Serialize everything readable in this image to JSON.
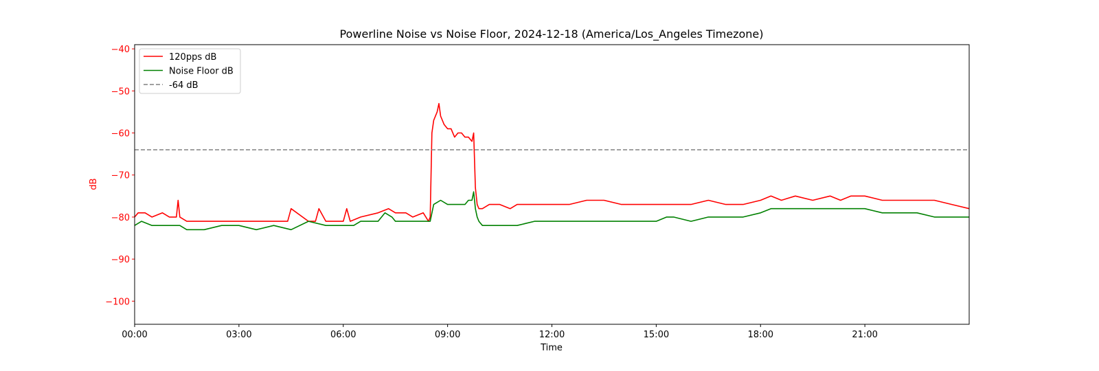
{
  "chart_data": {
    "type": "line",
    "title": "Powerline Noise vs Noise Floor, 2024-12-18 (America/Los_Angeles Timezone)",
    "xlabel": "Time",
    "ylabel": "dB",
    "x_unit": "hours",
    "xlim": [
      0,
      24
    ],
    "ylim": [
      -105.5,
      -39
    ],
    "x_ticks": [
      {
        "value": 0,
        "label": "00:00"
      },
      {
        "value": 3,
        "label": "03:00"
      },
      {
        "value": 6,
        "label": "06:00"
      },
      {
        "value": 9,
        "label": "09:00"
      },
      {
        "value": 12,
        "label": "12:00"
      },
      {
        "value": 15,
        "label": "15:00"
      },
      {
        "value": 18,
        "label": "18:00"
      },
      {
        "value": 21,
        "label": "21:00"
      }
    ],
    "y_ticks": [
      -40,
      -50,
      -60,
      -70,
      -80,
      -90,
      -100
    ],
    "grid": false,
    "legend_position": "top-left",
    "colors": {
      "ylabel": "#ff0000",
      "yticks": "#ff0000"
    },
    "series": [
      {
        "name": "120pps dB",
        "color": "#ff0000",
        "style": "solid",
        "x": [
          0,
          0.1,
          0.3,
          0.5,
          0.8,
          1.0,
          1.2,
          1.25,
          1.3,
          1.5,
          2.0,
          3.0,
          4.0,
          4.4,
          4.5,
          5.0,
          5.2,
          5.3,
          5.5,
          6.0,
          6.1,
          6.2,
          6.5,
          7.0,
          7.3,
          7.5,
          7.8,
          8.0,
          8.3,
          8.45,
          8.5,
          8.55,
          8.6,
          8.7,
          8.75,
          8.8,
          8.9,
          9.0,
          9.1,
          9.2,
          9.3,
          9.4,
          9.5,
          9.6,
          9.7,
          9.75,
          9.8,
          9.85,
          9.9,
          10.0,
          10.2,
          10.5,
          10.8,
          11.0,
          11.5,
          12.0,
          12.5,
          13.0,
          13.5,
          14.0,
          14.5,
          15.0,
          15.5,
          16.0,
          16.5,
          17.0,
          17.5,
          18.0,
          18.3,
          18.6,
          19.0,
          19.5,
          20.0,
          20.3,
          20.6,
          21.0,
          21.5,
          22.0,
          22.5,
          23.0,
          23.5,
          24.0
        ],
        "y": [
          -80,
          -79,
          -79,
          -80,
          -79,
          -80,
          -80,
          -76,
          -80,
          -81,
          -81,
          -81,
          -81,
          -81,
          -78,
          -81,
          -81,
          -78,
          -81,
          -81,
          -78,
          -81,
          -80,
          -79,
          -78,
          -79,
          -79,
          -80,
          -79,
          -81,
          -80,
          -60,
          -57,
          -55,
          -53,
          -56,
          -58,
          -59,
          -59,
          -61,
          -60,
          -60,
          -61,
          -61,
          -62,
          -60,
          -73,
          -77,
          -78,
          -78,
          -77,
          -77,
          -78,
          -77,
          -77,
          -77,
          -77,
          -76,
          -76,
          -77,
          -77,
          -77,
          -77,
          -77,
          -76,
          -77,
          -77,
          -76,
          -75,
          -76,
          -75,
          -76,
          -75,
          -76,
          -75,
          -75,
          -76,
          -76,
          -76,
          -76,
          -77,
          -78
        ]
      },
      {
        "name": "Noise Floor dB",
        "color": "#008000",
        "style": "solid",
        "x": [
          0,
          0.2,
          0.5,
          1.0,
          1.3,
          1.5,
          2.0,
          2.5,
          3.0,
          3.5,
          4.0,
          4.5,
          5.0,
          5.5,
          6.0,
          6.3,
          6.5,
          7.0,
          7.2,
          7.4,
          7.5,
          8.0,
          8.5,
          8.6,
          8.8,
          9.0,
          9.2,
          9.4,
          9.5,
          9.6,
          9.7,
          9.75,
          9.8,
          9.85,
          9.9,
          10.0,
          10.5,
          11.0,
          11.5,
          11.8,
          12.0,
          13.0,
          14.0,
          15.0,
          15.3,
          15.5,
          16.0,
          16.5,
          17.0,
          17.5,
          18.0,
          18.3,
          18.6,
          19.0,
          19.5,
          20.0,
          20.5,
          21.0,
          21.5,
          22.0,
          22.5,
          23.0,
          23.5,
          24.0
        ],
        "y": [
          -82,
          -81,
          -82,
          -82,
          -82,
          -83,
          -83,
          -82,
          -82,
          -83,
          -82,
          -83,
          -81,
          -82,
          -82,
          -82,
          -81,
          -81,
          -79,
          -80,
          -81,
          -81,
          -81,
          -77,
          -76,
          -77,
          -77,
          -77,
          -77,
          -76,
          -76,
          -74,
          -78,
          -80,
          -81,
          -82,
          -82,
          -82,
          -81,
          -81,
          -81,
          -81,
          -81,
          -81,
          -80,
          -80,
          -81,
          -80,
          -80,
          -80,
          -79,
          -78,
          -78,
          -78,
          -78,
          -78,
          -78,
          -78,
          -79,
          -79,
          -79,
          -80,
          -80,
          -80
        ]
      },
      {
        "name": "-64 dB",
        "color": "#808080",
        "style": "dashed",
        "x": [
          0,
          24
        ],
        "y": [
          -64,
          -64
        ]
      }
    ]
  }
}
